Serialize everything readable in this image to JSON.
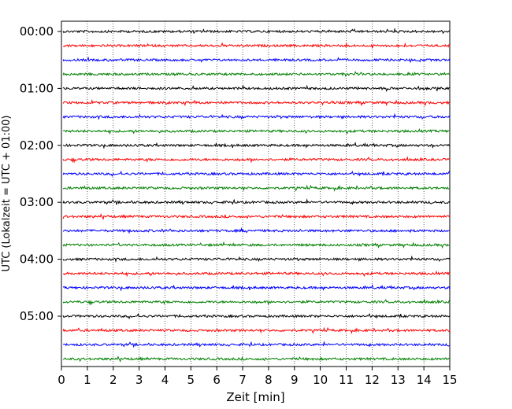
{
  "chart_data": {
    "type": "line",
    "title": "",
    "xlabel": "Zeit  [min]",
    "ylabel": "UTC (Lokalzeit = UTC + 01:00)",
    "xlim": [
      0,
      15
    ],
    "x_ticks": [
      0,
      1,
      2,
      3,
      4,
      5,
      6,
      7,
      8,
      9,
      10,
      11,
      12,
      13,
      14,
      15
    ],
    "y_tick_labels": [
      "00:00",
      "01:00",
      "02:00",
      "03:00",
      "04:00",
      "05:00"
    ],
    "trace_count": 24,
    "trace_interval_min": 15,
    "trace_colors": [
      "#000000",
      "#ff0000",
      "#0000ff",
      "#008000"
    ],
    "grid": "vertical dotted lines at each minute",
    "legend": "none"
  }
}
